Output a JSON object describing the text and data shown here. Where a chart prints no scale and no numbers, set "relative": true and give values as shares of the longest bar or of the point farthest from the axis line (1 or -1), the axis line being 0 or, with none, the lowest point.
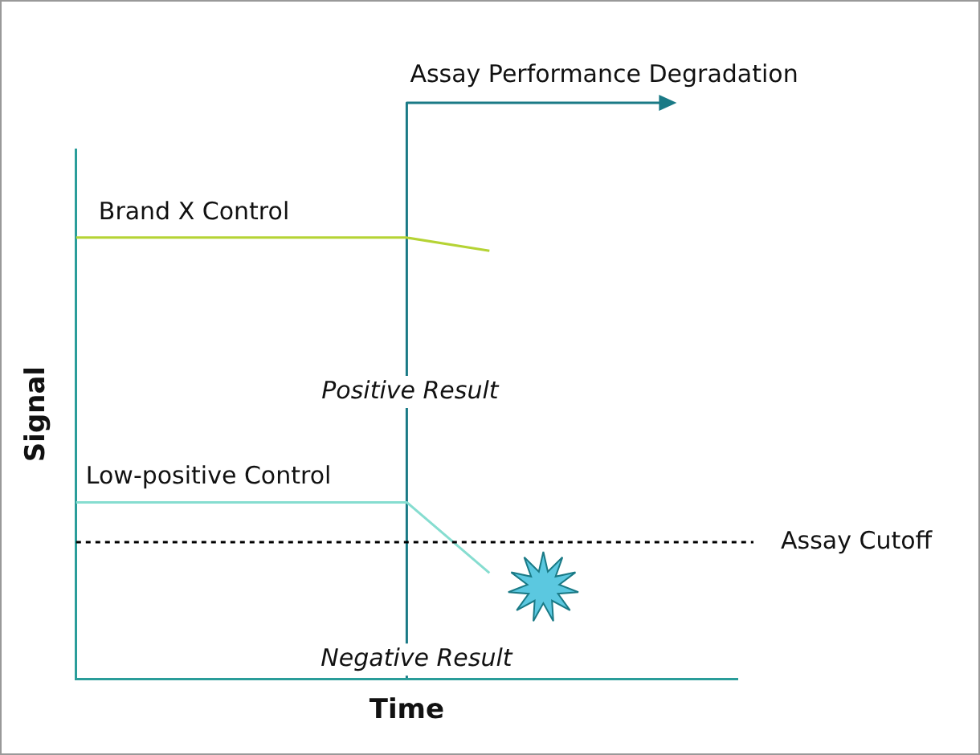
{
  "chart_data": {
    "type": "line",
    "relative": true,
    "xlabel": "Time",
    "ylabel": "Signal",
    "categories": [
      null,
      null,
      null,
      null,
      null,
      null,
      null,
      null,
      null
    ],
    "series": [
      {
        "name": "Brand X Control",
        "color": "#b5d334",
        "values": [
          1,
          1,
          1,
          1,
          1,
          0.97,
          null,
          null,
          null
        ]
      },
      {
        "name": "Low-positive Control",
        "color": "#86ddd0",
        "values": [
          0.4,
          0.4,
          0.4,
          0.4,
          0.4,
          0.24,
          null,
          null,
          null
        ]
      }
    ],
    "ref_lines": [
      {
        "axis": "y",
        "value": 0.31,
        "label": "Assay Cutoff",
        "color": "#000000",
        "line_style": "dotted"
      }
    ],
    "annotations": [
      "Assay Performance Degradation",
      "Positive Result",
      "Negative Result"
    ],
    "grid": false,
    "legend": false,
    "tick_labels": false,
    "marker": "none",
    "line_style": "solid"
  }
}
